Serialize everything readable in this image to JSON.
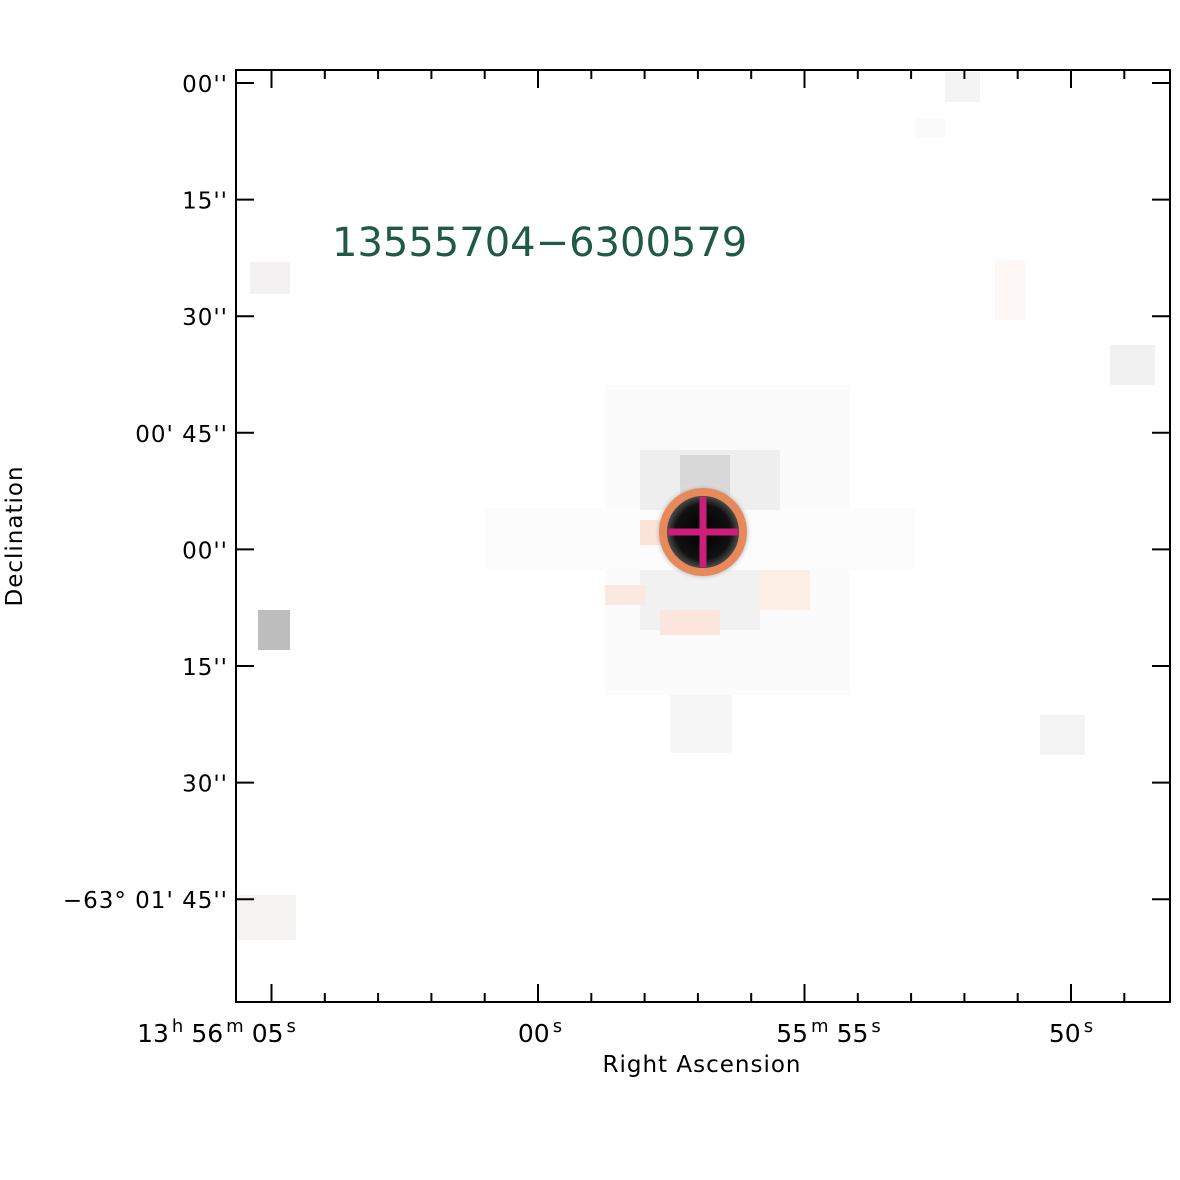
{
  "object_label": "13555704−6300579",
  "xlabel": "Right Ascension",
  "ylabel": "Declination",
  "y_ticks": [
    {
      "label": "00''",
      "dec_arcsec": 0
    },
    {
      "label": "15''",
      "dec_arcsec": 15
    },
    {
      "label": "30''",
      "dec_arcsec": 30
    },
    {
      "label": "00' 45''",
      "dec_arcsec": 45
    },
    {
      "label": "00''",
      "dec_arcsec": 60
    },
    {
      "label": "15''",
      "dec_arcsec": 75
    },
    {
      "label": "30''",
      "dec_arcsec": 90
    },
    {
      "label": "−63° 01' 45''",
      "dec_arcsec": 105
    }
  ],
  "x_ticks": [
    {
      "label": "13h 56m 05s",
      "ra_s": 5
    },
    {
      "label": "00s",
      "ra_s": 0
    },
    {
      "label": "55m 55s",
      "ra_s": -5
    },
    {
      "label": "50s",
      "ra_s": -10
    }
  ],
  "colors": {
    "label": "#1e5a44",
    "circle": "#e8895a",
    "cross": "#cc1f7a",
    "axes": "#000000"
  }
}
